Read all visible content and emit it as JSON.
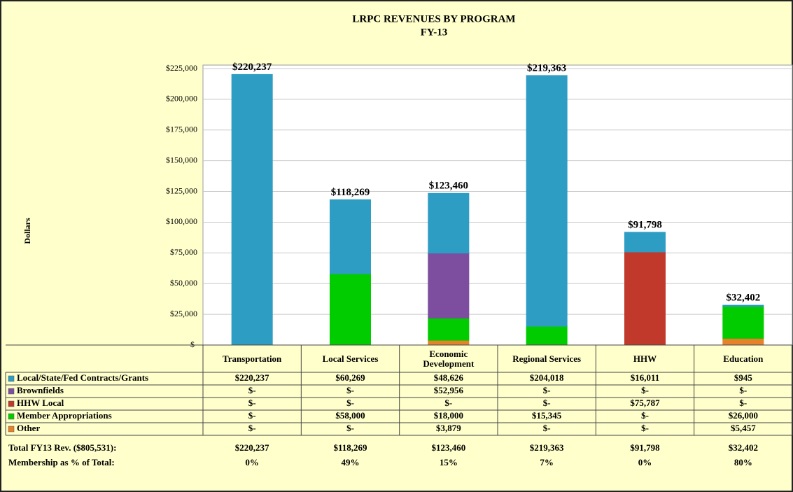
{
  "chart_data": {
    "type": "stacked_bar",
    "title": "LRPC REVENUES BY PROGRAM",
    "subtitle": "FY-13",
    "ylabel": "Dollars",
    "categories": [
      "Transportation",
      "Local Services",
      "Economic Development",
      "Regional Services",
      "HHW",
      "Education"
    ],
    "series": [
      {
        "name": "Other",
        "color": "#e8822a",
        "values": [
          0,
          0,
          3879,
          0,
          0,
          5457
        ],
        "value_labels": [
          "$-",
          "$-",
          "$3,879",
          "$-",
          "$-",
          "$5,457"
        ]
      },
      {
        "name": "Member Appropriations",
        "color": "#00cc00",
        "values": [
          0,
          58000,
          18000,
          15345,
          0,
          26000
        ],
        "value_labels": [
          "$-",
          "$58,000",
          "$18,000",
          "$15,345",
          "$-",
          "$26,000"
        ]
      },
      {
        "name": "HHW Local",
        "color": "#c0392b",
        "values": [
          0,
          0,
          0,
          0,
          75787,
          0
        ],
        "value_labels": [
          "$-",
          "$-",
          "$-",
          "$-",
          "$75,787",
          "$-"
        ]
      },
      {
        "name": "Brownfields",
        "color": "#7d4ea0",
        "values": [
          0,
          0,
          52956,
          0,
          0,
          0
        ],
        "value_labels": [
          "$-",
          "$-",
          "$52,956",
          "$-",
          "$-",
          "$-"
        ]
      },
      {
        "name": "Local/State/Fed Contracts/Grants",
        "color": "#2e9dc4",
        "values": [
          220237,
          60269,
          48626,
          204018,
          16011,
          945
        ],
        "value_labels": [
          "$220,237",
          "$60,269",
          "$48,626",
          "$204,018",
          "$16,011",
          "$945"
        ]
      }
    ],
    "totals": {
      "label": "Total FY13 Rev. ($805,531):",
      "values": [
        220237,
        118269,
        123460,
        219363,
        91798,
        32402
      ],
      "value_labels": [
        "$220,237",
        "$118,269",
        "$123,460",
        "$219,363",
        "$91,798",
        "$32,402"
      ]
    },
    "membership": {
      "label": "Membership as % of Total:",
      "values": [
        0,
        49,
        15,
        7,
        0,
        80
      ],
      "value_labels": [
        "0%",
        "49%",
        "15%",
        "7%",
        "0%",
        "80%"
      ]
    },
    "ylim": [
      0,
      225000
    ],
    "yticks": [
      {
        "value": 0,
        "label": "$-"
      },
      {
        "value": 25000,
        "label": "$25,000"
      },
      {
        "value": 50000,
        "label": "$50,000"
      },
      {
        "value": 75000,
        "label": "$75,000"
      },
      {
        "value": 100000,
        "label": "$100,000"
      },
      {
        "value": 125000,
        "label": "$125,000"
      },
      {
        "value": 150000,
        "label": "$150,000"
      },
      {
        "value": 175000,
        "label": "$175,000"
      },
      {
        "value": 200000,
        "label": "$200,000"
      },
      {
        "value": 225000,
        "label": "$225,000"
      }
    ],
    "grid": true
  }
}
